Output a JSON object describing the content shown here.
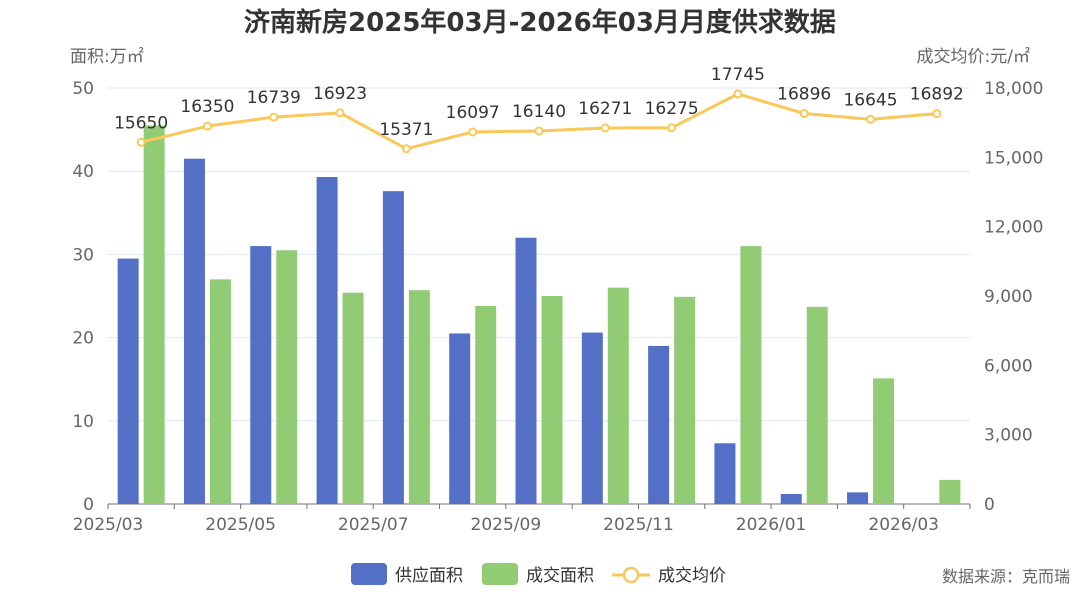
{
  "chart_data": {
    "type": "bar",
    "title": "济南新房2025年03月-2026年03月月度供求数据",
    "y_left_label": "面积:万㎡",
    "y_right_label": "成交均价:元/㎡",
    "y_left_lim": [
      0,
      50
    ],
    "y_left_ticks": [
      "0",
      "10",
      "20",
      "30",
      "40",
      "50"
    ],
    "y_right_lim": [
      0,
      18000
    ],
    "y_right_ticks": [
      "0",
      "3,000",
      "6,000",
      "9,000",
      "12,000",
      "15,000",
      "18,000"
    ],
    "x_tick_labels": [
      "2025/03",
      "2025/05",
      "2025/07",
      "2025/09",
      "2025/11",
      "2026/01",
      "2026/03"
    ],
    "categories": [
      "2025/03",
      "2025/04",
      "2025/05",
      "2025/06",
      "2025/07",
      "2025/08",
      "2025/09",
      "2025/10",
      "2025/11",
      "2025/12",
      "2026/01",
      "2026/02",
      "2026/03"
    ],
    "series": [
      {
        "name": "供应面积",
        "type": "bar",
        "axis": "left",
        "color": "#5470c6",
        "values": [
          29.5,
          41.5,
          31.0,
          39.3,
          37.6,
          20.5,
          32.0,
          20.6,
          19.0,
          7.3,
          1.2,
          1.4,
          0
        ]
      },
      {
        "name": "成交面积",
        "type": "bar",
        "axis": "left",
        "color": "#91cc75",
        "values": [
          45.5,
          27.0,
          30.5,
          25.4,
          25.7,
          23.8,
          25.0,
          26.0,
          24.9,
          31.0,
          23.7,
          15.1,
          2.9
        ]
      },
      {
        "name": "成交均价",
        "type": "line",
        "axis": "right",
        "color": "#fac858",
        "values": [
          15650,
          16350,
          16739,
          16923,
          15371,
          16097,
          16140,
          16271,
          16275,
          17745,
          16896,
          16645,
          16892
        ],
        "labels": [
          "15650",
          "16350",
          "16739",
          "16923",
          "15371",
          "16097",
          "16140",
          "16271",
          "16275",
          "17745",
          "16896",
          "16645",
          "16892"
        ]
      }
    ],
    "legend": [
      "供应面积",
      "成交面积",
      "成交均价"
    ],
    "legend_position": "bottom-center",
    "source": "数据来源：克而瑞"
  }
}
